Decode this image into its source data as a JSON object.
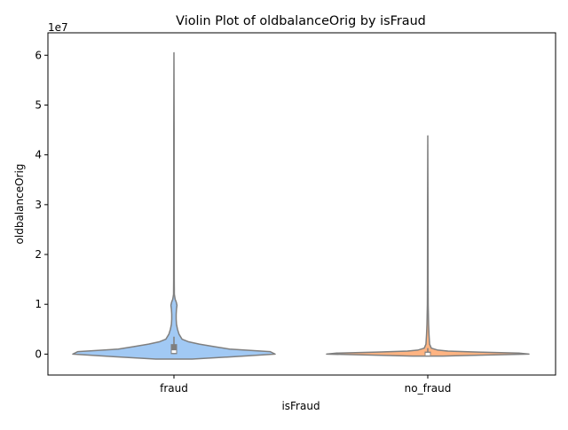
{
  "chart_data": {
    "type": "violin",
    "title": "Violin Plot of oldbalanceOrig by isFraud",
    "xlabel": "isFraud",
    "ylabel": "oldbalanceOrig",
    "y_offset_label": "1e7",
    "ylim": [
      -4200000,
      64500000
    ],
    "y_ticks": [
      0,
      10000000,
      20000000,
      30000000,
      40000000,
      50000000,
      60000000
    ],
    "y_tick_labels": [
      "0",
      "1",
      "2",
      "3",
      "4",
      "5",
      "6"
    ],
    "categories": [
      "fraud",
      "no_fraud"
    ],
    "colors": {
      "fraud": "#a1c9f4",
      "no_fraud": "#ffb482",
      "outline": "#7f7f7f",
      "box": "#7f7f7f"
    },
    "series": [
      {
        "category": "fraud",
        "max": 60500000,
        "q1": 0,
        "median": 500000,
        "q3": 2000000,
        "whisker_high": 3500000,
        "density": [
          [
            -1000000,
            0.18
          ],
          [
            -500000,
            0.6
          ],
          [
            0,
            1.0
          ],
          [
            500000,
            0.95
          ],
          [
            1000000,
            0.55
          ],
          [
            1500000,
            0.4
          ],
          [
            2000000,
            0.25
          ],
          [
            2500000,
            0.14
          ],
          [
            3000000,
            0.08
          ],
          [
            4000000,
            0.05
          ],
          [
            5000000,
            0.035
          ],
          [
            6000000,
            0.025
          ],
          [
            7000000,
            0.022
          ],
          [
            8000000,
            0.022
          ],
          [
            9000000,
            0.025
          ],
          [
            9800000,
            0.03
          ],
          [
            10500000,
            0.022
          ],
          [
            11000000,
            0.012
          ],
          [
            12000000,
            0.004
          ],
          [
            15000000,
            0.003
          ],
          [
            30000000,
            0.002
          ],
          [
            45000000,
            0.002
          ],
          [
            60500000,
            0.0
          ]
        ]
      },
      {
        "category": "no_fraud",
        "max": 43800000,
        "q1": -200000,
        "median": 0,
        "q3": 500000,
        "whisker_high": 1200000,
        "density": [
          [
            -400000,
            0.15
          ],
          [
            -200000,
            0.55
          ],
          [
            0,
            1.0
          ],
          [
            200000,
            0.9
          ],
          [
            400000,
            0.5
          ],
          [
            600000,
            0.2
          ],
          [
            800000,
            0.1
          ],
          [
            1200000,
            0.035
          ],
          [
            2000000,
            0.018
          ],
          [
            4000000,
            0.012
          ],
          [
            6000000,
            0.008
          ],
          [
            8000000,
            0.006
          ],
          [
            10000000,
            0.004
          ],
          [
            15000000,
            0.003
          ],
          [
            30000000,
            0.002
          ],
          [
            43800000,
            0.0
          ]
        ]
      }
    ]
  }
}
